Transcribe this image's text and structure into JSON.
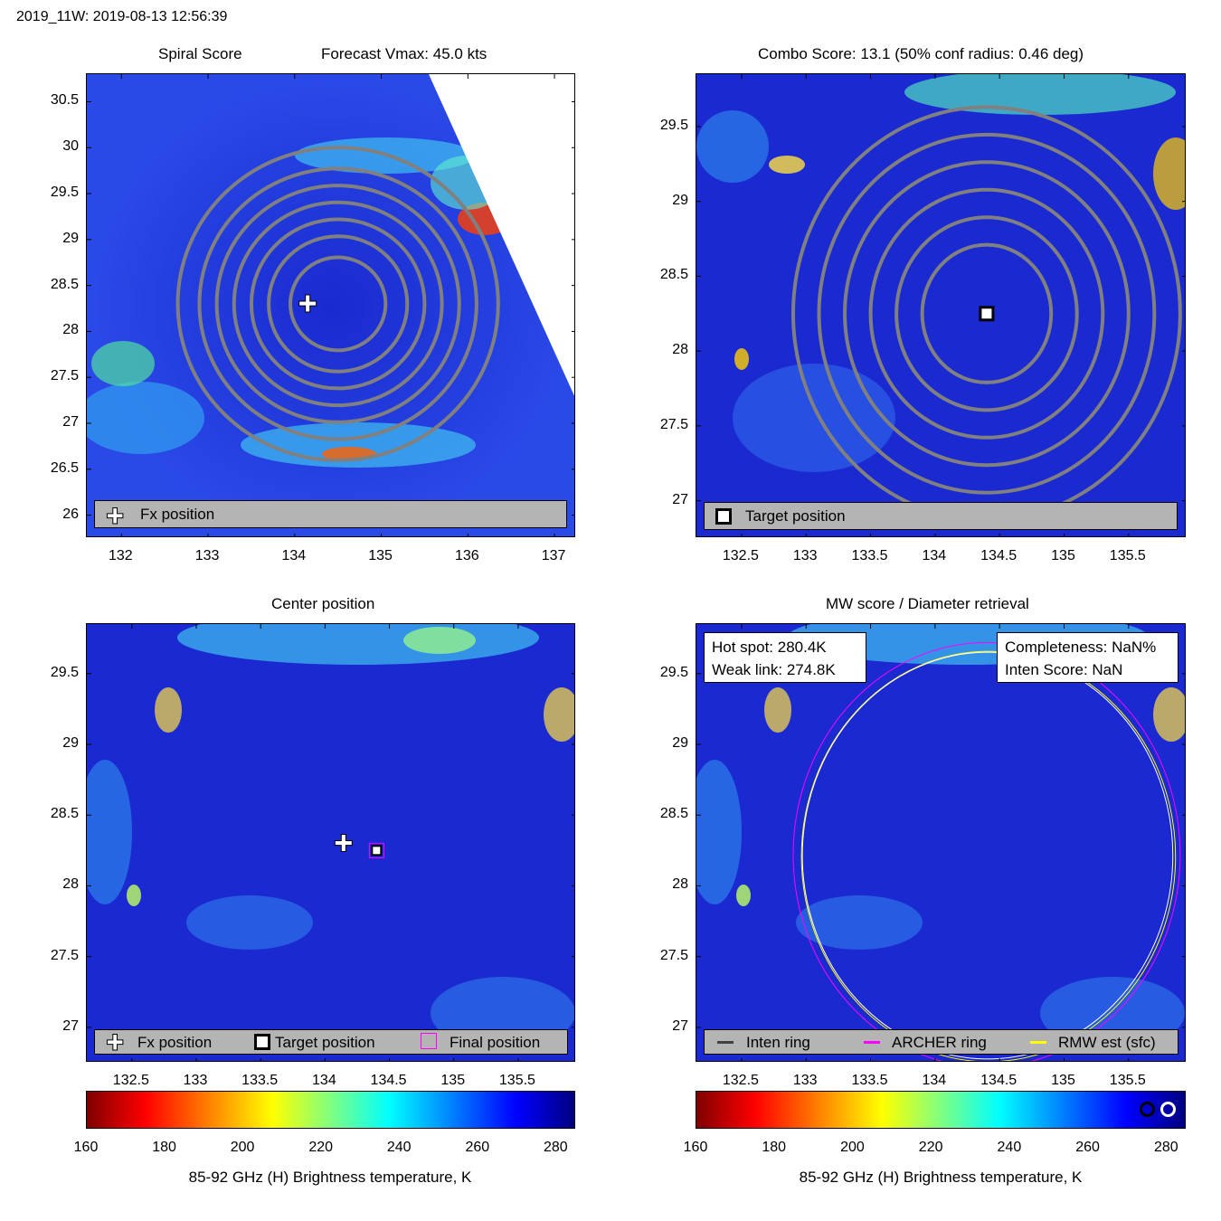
{
  "header": {
    "title": "2019_11W: 2019-08-13 12:56:39"
  },
  "colors": {
    "contour": "#808080",
    "low_tb": "#800000",
    "high_tb": "#000080",
    "bg_field": "#1530d8",
    "archer_ring": "#ff00ff",
    "rmw_ring": "#ffff00",
    "legend_bg": "#b4b4b4"
  },
  "panels": {
    "spiral": {
      "title_left": "Spiral Score",
      "title_right": "Forecast Vmax: 45.0 kts",
      "legend": {
        "fx_label": "Fx position"
      }
    },
    "combo": {
      "title": "Combo Score: 13.1  (50% conf radius: 0.46 deg)",
      "legend": {
        "target_label": "Target position"
      }
    },
    "center": {
      "title": "Center position",
      "legend": {
        "fx_label": "Fx position",
        "target_label": "Target position",
        "final_label": "Final position"
      }
    },
    "mw": {
      "title": "MW score / Diameter retrieval",
      "hot_spot": "Hot spot: 280.4K",
      "weak_link": "Weak link: 274.8K",
      "completeness": "Completeness: NaN%",
      "inten_score": "Inten Score: NaN",
      "legend": {
        "inten_ring": "Inten ring",
        "archer_ring": "ARCHER ring",
        "rmw_est": "RMW est (sfc)"
      }
    }
  },
  "colorbar": {
    "label": "85-92 GHz (H) Brightness temperature, K",
    "ticks": [
      "160",
      "180",
      "200",
      "220",
      "240",
      "260",
      "280"
    ]
  },
  "chart_data": [
    {
      "type": "heatmap",
      "name": "Spiral Score",
      "xlim": [
        131.6,
        137.25
      ],
      "ylim": [
        25.75,
        30.8
      ],
      "x_ticks": [
        "132",
        "133",
        "134",
        "135",
        "136",
        "137"
      ],
      "y_ticks": [
        "26",
        "26.5",
        "27",
        "27.5",
        "28",
        "28.5",
        "29",
        "29.5",
        "30",
        "30.5"
      ],
      "fx_position": {
        "lon": 134.15,
        "lat": 28.3
      },
      "contour_center": {
        "lon": 134.5,
        "lat": 28.3
      },
      "contour_radii_deg": [
        0.55,
        0.8,
        1.0,
        1.2,
        1.4,
        1.6,
        1.85
      ]
    },
    {
      "type": "heatmap",
      "name": "Combo Score",
      "xlim": [
        132.15,
        135.95
      ],
      "ylim": [
        26.75,
        29.85
      ],
      "x_ticks": [
        "132.5",
        "133",
        "133.5",
        "134",
        "134.5",
        "135",
        "135.5"
      ],
      "y_ticks": [
        "27",
        "27.5",
        "28",
        "28.5",
        "29",
        "29.5"
      ],
      "target_position": {
        "lon": 134.4,
        "lat": 28.25
      },
      "contour_radii_deg": [
        0.5,
        0.7,
        0.9,
        1.1,
        1.3,
        1.5
      ]
    },
    {
      "type": "heatmap",
      "name": "Center position",
      "xlim": [
        132.15,
        135.95
      ],
      "ylim": [
        26.75,
        29.85
      ],
      "x_ticks": [
        "132.5",
        "133",
        "133.5",
        "134",
        "134.5",
        "135",
        "135.5"
      ],
      "y_ticks": [
        "27",
        "27.5",
        "28",
        "28.5",
        "29",
        "29.5"
      ],
      "fx_position": {
        "lon": 134.15,
        "lat": 28.3
      },
      "target_position": {
        "lon": 134.4,
        "lat": 28.25
      },
      "final_position": {
        "lon": 134.4,
        "lat": 28.25
      }
    },
    {
      "type": "heatmap",
      "name": "MW score / Diameter retrieval",
      "xlim": [
        132.15,
        135.95
      ],
      "ylim": [
        26.75,
        29.85
      ],
      "x_ticks": [
        "132.5",
        "133",
        "133.5",
        "134",
        "134.5",
        "135",
        "135.5"
      ],
      "y_ticks": [
        "27",
        "27.5",
        "28",
        "28.5",
        "29",
        "29.5"
      ],
      "archer_ring_radius_deg": 1.5,
      "rmw_ring_radius_deg": 1.45,
      "ring_center": {
        "lon": 134.4,
        "lat": 28.22
      }
    }
  ]
}
